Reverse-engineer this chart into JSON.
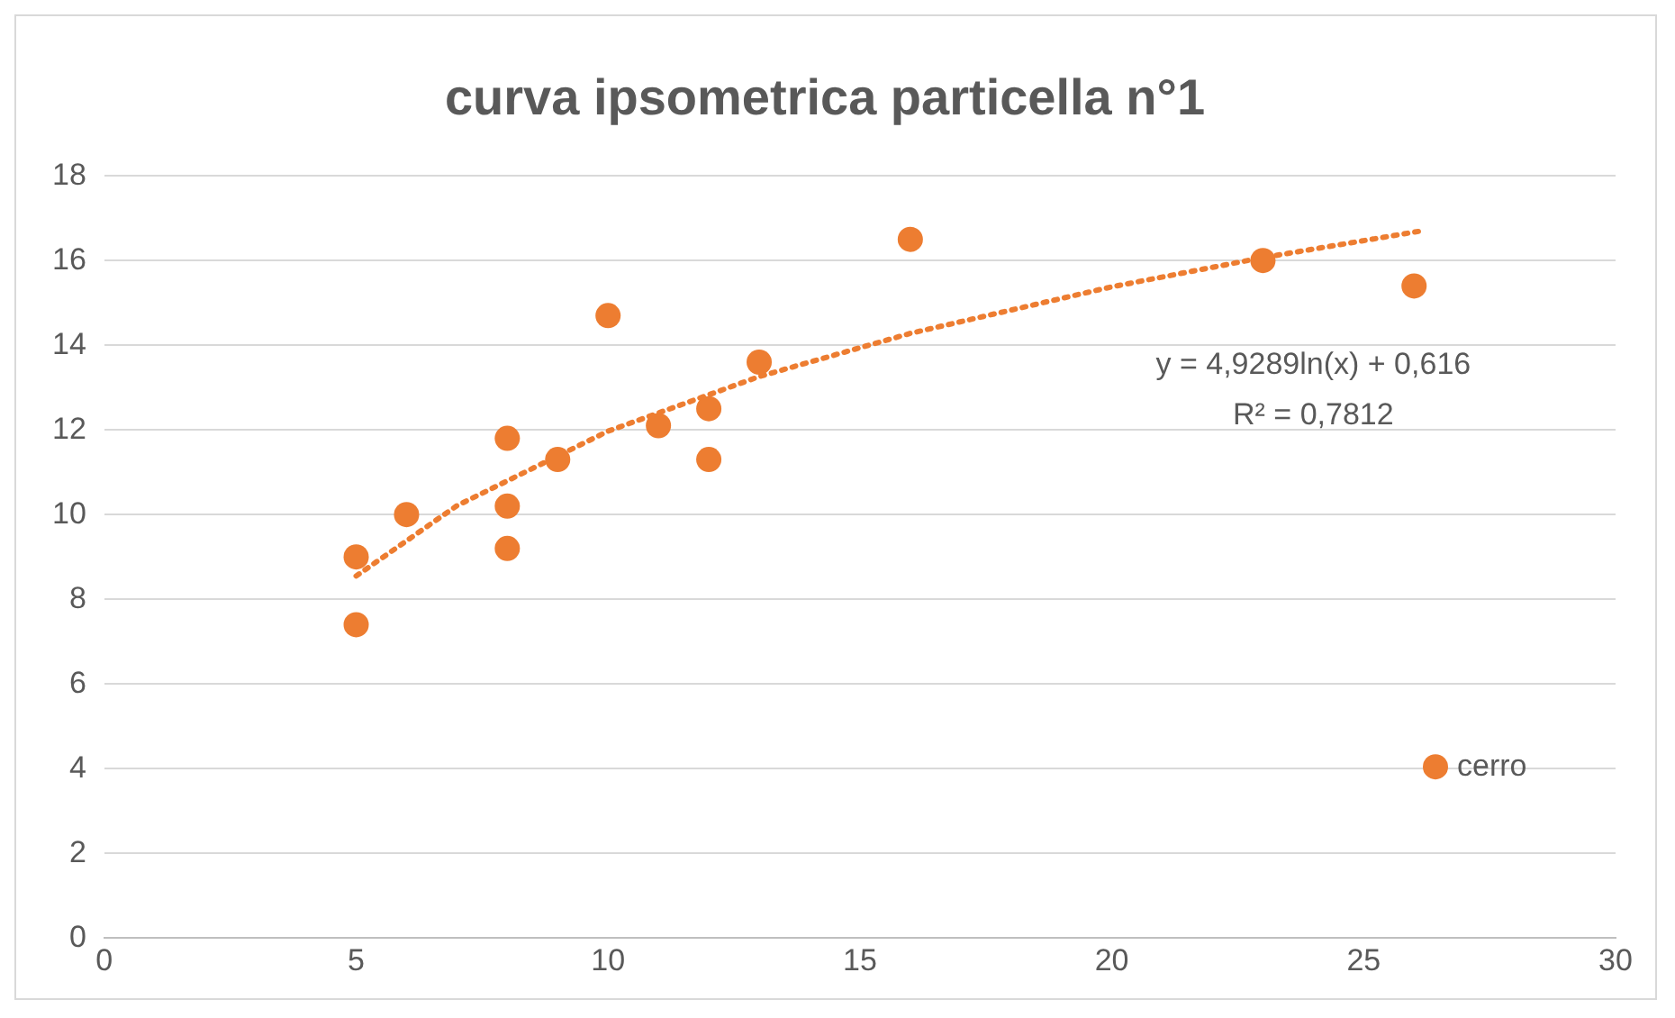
{
  "chart_data": {
    "type": "scatter",
    "title": "curva ipsometrica particella n°1",
    "series": [
      {
        "name": "cerro",
        "type": "scatter",
        "color": "#ed7d31",
        "x": [
          5,
          5,
          6,
          8,
          8,
          8,
          9,
          10,
          11,
          12,
          12,
          13,
          16,
          23,
          26
        ],
        "values": [
          9.0,
          7.4,
          10.0,
          11.8,
          10.2,
          9.2,
          11.3,
          14.7,
          12.1,
          12.5,
          11.3,
          13.6,
          16.5,
          16.0,
          15.4
        ],
        "marker": "circle"
      },
      {
        "type": "line",
        "color": "#ed7d31",
        "line_style": "dotted",
        "marker": "none",
        "x": [
          5,
          7,
          10,
          13,
          16,
          20,
          23,
          26.1
        ],
        "values": [
          8.55,
          10.21,
          11.97,
          13.26,
          14.28,
          15.38,
          16.07,
          16.69
        ]
      }
    ],
    "annotations": [
      "y = 4,9289ln(x) + 0,616",
      "R² = 0,7812"
    ],
    "xlim": [
      0,
      30
    ],
    "xticks": [
      0,
      5,
      10,
      15,
      20,
      25,
      30
    ],
    "ylim": [
      0,
      18
    ],
    "yticks": [
      0,
      2,
      4,
      6,
      8,
      10,
      12,
      14,
      16,
      18
    ],
    "grid": "y",
    "legend": "bottom right"
  }
}
